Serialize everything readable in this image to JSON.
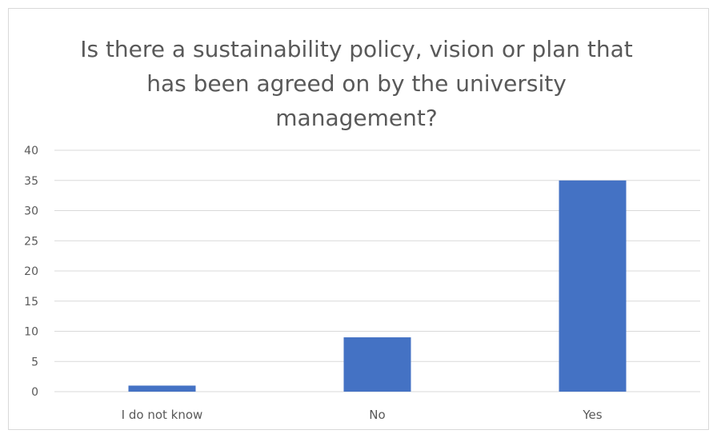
{
  "chart_data": {
    "type": "bar",
    "title_lines": [
      "Is there a sustainability policy, vision or plan that",
      "has been agreed on by the university",
      "management?"
    ],
    "categories": [
      "I do not know",
      "No",
      "Yes"
    ],
    "values": [
      1,
      9,
      35
    ],
    "ylim": [
      0,
      40
    ],
    "yticks": [
      "0",
      "5",
      "10",
      "15",
      "20",
      "25",
      "30",
      "35",
      "40"
    ],
    "xlabel": "",
    "ylabel": "",
    "grid": true,
    "legend": "none",
    "bar_color": "#4472c4",
    "grid_color": "#d9d9d9"
  }
}
